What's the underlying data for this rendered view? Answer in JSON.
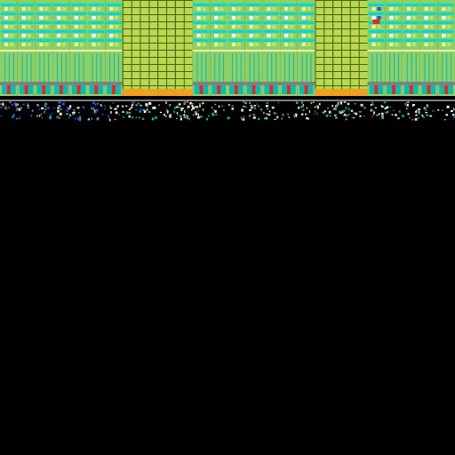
{
  "viewport": {
    "name": "tile-map-view"
  },
  "tileset": {
    "palette": {
      "background": "#000000",
      "cyan": "#00d8d8",
      "teal": "#10b8b0",
      "green": "#8cd068",
      "yellow_green": "#b8d850",
      "lime": "#c8e060",
      "pale_yellow": "#f0f0a0",
      "blue": "#3050d8",
      "white": "#ffffff",
      "orange": "#f0a020",
      "red": "#d83020",
      "gray": "#808080",
      "dark_olive": "#486018"
    },
    "columns": [
      {
        "type": "circuit"
      },
      {
        "type": "circuit"
      },
      {
        "type": "circuit"
      },
      {
        "type": "circuit"
      },
      {
        "type": "circuit"
      },
      {
        "type": "circuit"
      },
      {
        "type": "circuit"
      },
      {
        "type": "grid-block"
      },
      {
        "type": "grid-block"
      },
      {
        "type": "grid-block"
      },
      {
        "type": "grid-block"
      },
      {
        "type": "circuit"
      },
      {
        "type": "circuit"
      },
      {
        "type": "circuit"
      },
      {
        "type": "circuit"
      },
      {
        "type": "circuit"
      },
      {
        "type": "circuit"
      },
      {
        "type": "circuit"
      },
      {
        "type": "grid-block"
      },
      {
        "type": "grid-block"
      },
      {
        "type": "grid-block"
      },
      {
        "type": "circuit-alt"
      },
      {
        "type": "circuit"
      },
      {
        "type": "circuit"
      },
      {
        "type": "circuit"
      },
      {
        "type": "circuit"
      }
    ],
    "bottom_strip": {
      "type": "noise-dots"
    }
  }
}
